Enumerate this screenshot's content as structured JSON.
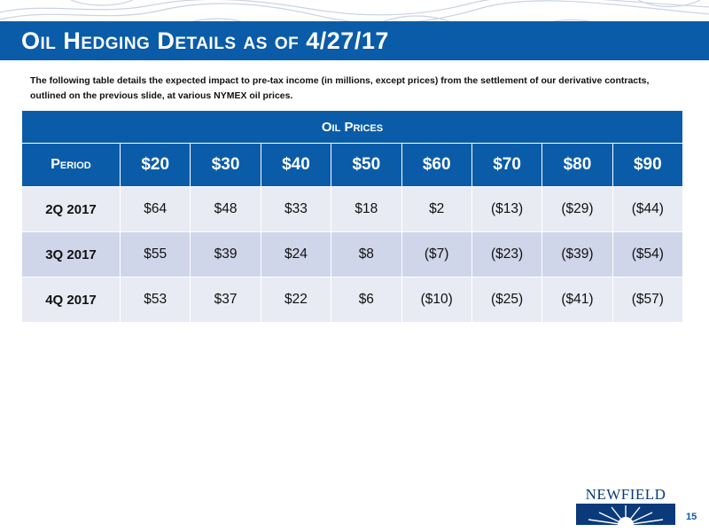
{
  "slide": {
    "title": "Oil Hedging Details as of 4/27/17",
    "intro": "The following table details the expected impact to pre-tax income (in millions, except prices) from the settlement of our derivative contracts, outlined on the previous slide, at various NYMEX oil prices.",
    "page_number": "15",
    "logo_text": "NEWFIELD",
    "accent_color": "#0a5ca8"
  },
  "table": {
    "caption": "Oil Prices",
    "period_header": "Period",
    "price_headers": [
      "$20",
      "$30",
      "$40",
      "$50",
      "$60",
      "$70",
      "$80",
      "$90"
    ],
    "rows": [
      {
        "period": "2Q 2017",
        "values": [
          "$64",
          "$48",
          "$33",
          "$18",
          "$2",
          "($13)",
          "($29)",
          "($44)"
        ]
      },
      {
        "period": "3Q 2017",
        "values": [
          "$55",
          "$39",
          "$24",
          "$8",
          "($7)",
          "($23)",
          "($39)",
          "($54)"
        ]
      },
      {
        "period": "4Q 2017",
        "values": [
          "$53",
          "$37",
          "$22",
          "$6",
          "($10)",
          "($25)",
          "($41)",
          "($57)"
        ]
      }
    ]
  }
}
